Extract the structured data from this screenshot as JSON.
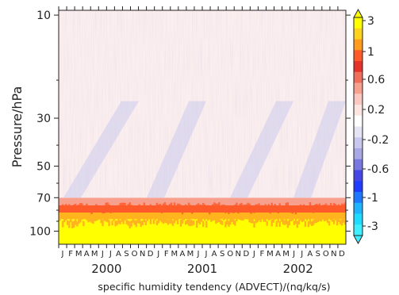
{
  "chart_data": {
    "type": "heatmap",
    "xlabel": "specific humidity tendency (ADVECT)/(nq/kq/s)",
    "ylabel": "Pressure/hPa",
    "y_scale": "log",
    "y_ticks": [
      {
        "value": 10,
        "label": "10"
      },
      {
        "value": 30,
        "label": "30"
      },
      {
        "value": 50,
        "label": "50"
      },
      {
        "value": 70,
        "label": "70"
      },
      {
        "value": 100,
        "label": "100"
      }
    ],
    "ylim": [
      115,
      9.5
    ],
    "x_months": [
      "J",
      "F",
      "M",
      "A",
      "M",
      "J",
      "J",
      "A",
      "S",
      "O",
      "N",
      "D",
      "J",
      "F",
      "M",
      "A",
      "M",
      "J",
      "J",
      "A",
      "S",
      "O",
      "N",
      "D",
      "J",
      "F",
      "M",
      "A",
      "M",
      "J",
      "J",
      "A",
      "S",
      "O",
      "N",
      "D"
    ],
    "x_years": [
      "2000",
      "2001",
      "2002"
    ],
    "colorbar": {
      "labels": [
        "3",
        "1",
        "0.6",
        "0.2",
        "-0.2",
        "-0.6",
        "-1",
        "-3"
      ],
      "colors_top_to_bottom": [
        "#ffff00",
        "#ffd21e",
        "#ff9c1e",
        "#ff5a2a",
        "#e6322a",
        "#f06e5a",
        "#f7a08e",
        "#fac8c0",
        "#fce4e0",
        "#ffffff",
        "#e4e4f4",
        "#c8c8ee",
        "#a8a8e6",
        "#7878e0",
        "#4646e6",
        "#1e3cff",
        "#1e78ff",
        "#1eb4ff",
        "#1edcff",
        "#3cf0ff"
      ]
    },
    "bands": [
      {
        "p_top": 115,
        "p_bottom": 88,
        "color": "#ffff00",
        "value": "3"
      },
      {
        "p_top": 88,
        "p_bottom": 82,
        "color": "#ffb41e",
        "value": "1"
      },
      {
        "p_top": 82,
        "p_bottom": 76,
        "color": "#ff5a2a",
        "value": "0.6"
      },
      {
        "p_top": 76,
        "p_bottom": 70,
        "color": "#f7a08e",
        "value": "0.2"
      },
      {
        "p_top": 70,
        "p_bottom": 9.5,
        "color": "#fbeeee",
        "value": "0.2"
      }
    ]
  },
  "colors": {
    "background": "#ffffff",
    "axis": "#222222"
  }
}
